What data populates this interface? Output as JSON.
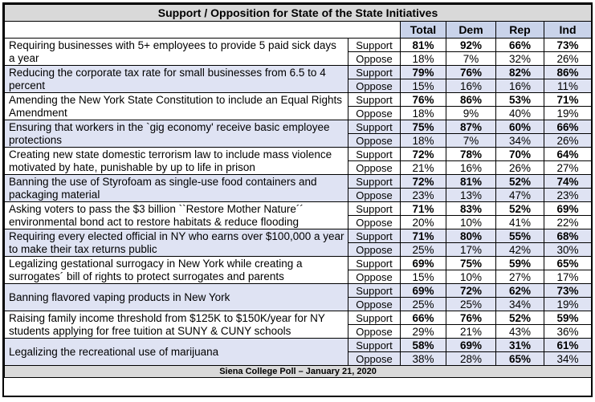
{
  "title": "Support / Opposition for State of the State Initiatives",
  "columns": [
    "Total",
    "Dem",
    "Rep",
    "Ind"
  ],
  "row_labels": {
    "support": "Support",
    "oppose": "Oppose"
  },
  "footer": "Siena College Poll – January 21, 2020",
  "items": [
    {
      "question": "Requiring businesses with 5+ employees to provide 5 paid sick days a year",
      "support": [
        "81%",
        "92%",
        "66%",
        "73%"
      ],
      "oppose": [
        "18%",
        "7%",
        "32%",
        "26%"
      ]
    },
    {
      "question": "Reducing the corporate tax rate for small businesses from 6.5 to 4 percent",
      "support": [
        "79%",
        "76%",
        "82%",
        "86%"
      ],
      "oppose": [
        "15%",
        "16%",
        "16%",
        "11%"
      ]
    },
    {
      "question": "Amending the New York State Constitution to include an Equal Rights Amendment",
      "support": [
        "76%",
        "86%",
        "53%",
        "71%"
      ],
      "oppose": [
        "18%",
        "9%",
        "40%",
        "19%"
      ]
    },
    {
      "question": "Ensuring that workers in the `gig economy' receive basic employee protections",
      "support": [
        "75%",
        "87%",
        "60%",
        "66%"
      ],
      "oppose": [
        "18%",
        "7%",
        "34%",
        "26%"
      ]
    },
    {
      "question": "Creating new state domestic terrorism law to include mass violence motivated by hate, punishable by up to life in prison",
      "support": [
        "72%",
        "78%",
        "70%",
        "64%"
      ],
      "oppose": [
        "21%",
        "16%",
        "26%",
        "27%"
      ]
    },
    {
      "question": "Banning the use of Styrofoam as single-use food containers and packaging material",
      "support": [
        "72%",
        "81%",
        "52%",
        "74%"
      ],
      "oppose": [
        "23%",
        "13%",
        "47%",
        "23%"
      ]
    },
    {
      "question": "Asking voters to pass the $3 billion ``Restore Mother Nature´´ environmental bond act to restore habitats & reduce flooding",
      "support": [
        "71%",
        "83%",
        "52%",
        "69%"
      ],
      "oppose": [
        "20%",
        "10%",
        "41%",
        "22%"
      ]
    },
    {
      "question": "Requiring every elected official in NY who earns over $100,000 a year to make their tax returns public",
      "support": [
        "71%",
        "80%",
        "55%",
        "68%"
      ],
      "oppose": [
        "25%",
        "17%",
        "42%",
        "30%"
      ]
    },
    {
      "question": "Legalizing gestational surrogacy in New York while creating a surrogates´ bill of rights to protect surrogates and parents",
      "support": [
        "69%",
        "75%",
        "59%",
        "65%"
      ],
      "oppose": [
        "15%",
        "10%",
        "27%",
        "17%"
      ]
    },
    {
      "question": "Banning flavored vaping products in New York",
      "support": [
        "69%",
        "72%",
        "62%",
        "73%"
      ],
      "oppose": [
        "25%",
        "25%",
        "34%",
        "19%"
      ]
    },
    {
      "question": "Raising family income threshold from $125K to $150K/year for NY students applying for free tuition at SUNY & CUNY schools",
      "support": [
        "66%",
        "76%",
        "52%",
        "59%"
      ],
      "oppose": [
        "29%",
        "21%",
        "43%",
        "36%"
      ]
    },
    {
      "question": "Legalizing the recreational use of marijuana",
      "support": [
        "58%",
        "69%",
        "31%",
        "61%"
      ],
      "oppose": [
        "38%",
        "28%",
        "65%",
        "34%"
      ],
      "bold_oppose_index": 2
    }
  ]
}
